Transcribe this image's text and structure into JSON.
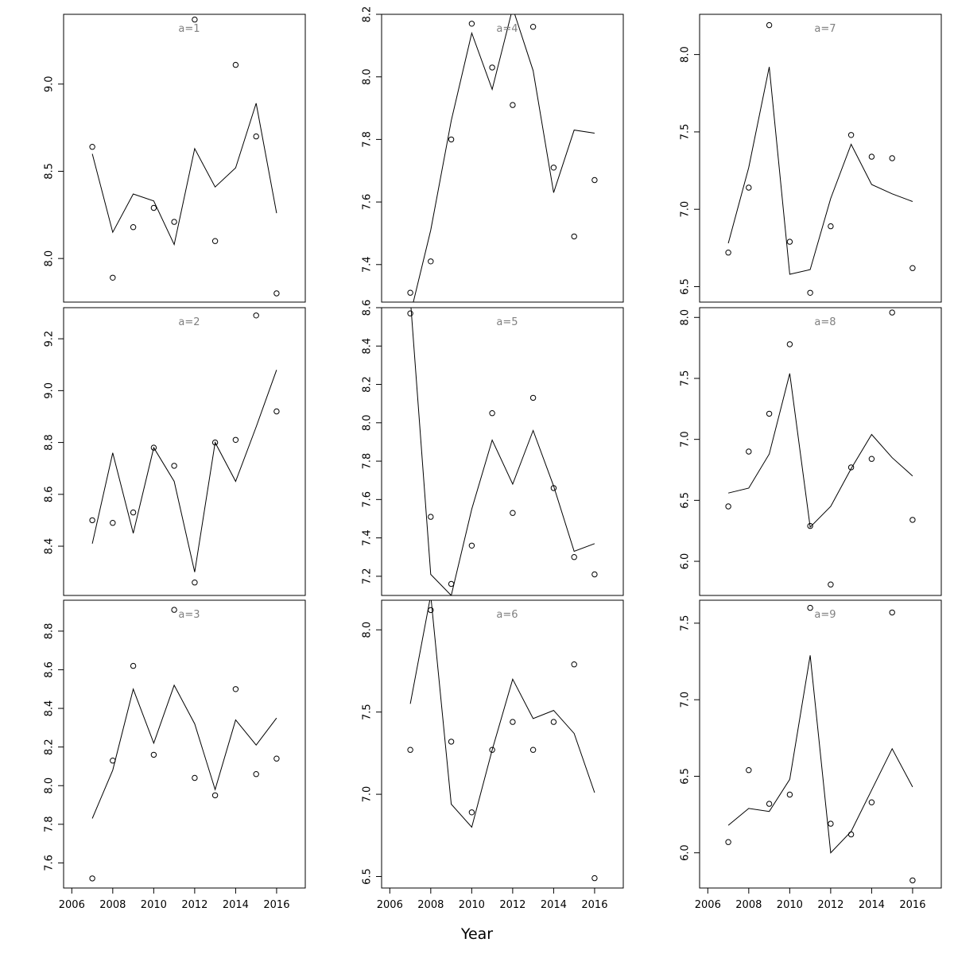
{
  "figure": {
    "xlabel": "Year"
  },
  "chart_data": [
    {
      "type": "line+scatter",
      "label": "a=1",
      "x": [
        2007,
        2008,
        2009,
        2010,
        2011,
        2012,
        2013,
        2014,
        2015,
        2016
      ],
      "points": [
        8.64,
        7.89,
        8.18,
        8.29,
        8.21,
        9.37,
        8.1,
        9.11,
        8.7,
        7.8
      ],
      "line": [
        8.6,
        8.15,
        8.37,
        8.33,
        8.08,
        8.63,
        8.41,
        8.52,
        8.89,
        8.26
      ],
      "ylim": [
        7.75,
        9.4
      ],
      "yticks": [
        8.0,
        8.5,
        9.0
      ],
      "show_xaxis": false
    },
    {
      "type": "line+scatter",
      "label": "a=2",
      "x": [
        2007,
        2008,
        2009,
        2010,
        2011,
        2012,
        2013,
        2014,
        2015,
        2016
      ],
      "points": [
        8.5,
        8.49,
        8.53,
        8.78,
        8.71,
        8.26,
        8.8,
        8.81,
        9.29,
        8.92
      ],
      "line": [
        8.41,
        8.76,
        8.45,
        8.78,
        8.65,
        8.3,
        8.8,
        8.65,
        8.86,
        9.08
      ],
      "ylim": [
        8.21,
        9.32
      ],
      "yticks": [
        8.4,
        8.6,
        8.8,
        9.0,
        9.2
      ],
      "show_xaxis": false
    },
    {
      "type": "line+scatter",
      "label": "a=3",
      "x": [
        2007,
        2008,
        2009,
        2010,
        2011,
        2012,
        2013,
        2014,
        2015,
        2016
      ],
      "points": [
        7.52,
        8.13,
        8.62,
        8.16,
        8.91,
        8.04,
        7.95,
        8.5,
        8.06,
        8.14
      ],
      "line": [
        7.83,
        8.08,
        8.5,
        8.22,
        8.52,
        8.32,
        7.98,
        8.34,
        8.21,
        8.35
      ],
      "ylim": [
        7.47,
        8.96
      ],
      "yticks": [
        7.6,
        7.8,
        8.0,
        8.2,
        8.4,
        8.6,
        8.8
      ],
      "show_xaxis": true
    },
    {
      "type": "line+scatter",
      "label": "a=4",
      "x": [
        2007,
        2008,
        2009,
        2010,
        2011,
        2012,
        2013,
        2014,
        2015,
        2016
      ],
      "points": [
        7.31,
        7.41,
        7.8,
        8.17,
        8.03,
        7.91,
        8.16,
        7.71,
        7.49,
        7.67
      ],
      "line": [
        7.24,
        7.51,
        7.86,
        8.14,
        7.96,
        8.22,
        8.02,
        7.63,
        7.83,
        7.82
      ],
      "ylim": [
        7.28,
        8.2
      ],
      "yticks": [
        7.4,
        7.6,
        7.8,
        8.0,
        8.2
      ],
      "show_xaxis": false
    },
    {
      "type": "line+scatter",
      "label": "a=5",
      "x": [
        2007,
        2008,
        2009,
        2010,
        2011,
        2012,
        2013,
        2014,
        2015,
        2016
      ],
      "points": [
        8.57,
        7.51,
        7.16,
        7.36,
        8.05,
        7.53,
        8.13,
        7.66,
        7.3,
        7.21
      ],
      "line": [
        8.65,
        7.21,
        7.1,
        7.55,
        7.91,
        7.68,
        7.96,
        7.67,
        7.33,
        7.37
      ],
      "ylim": [
        7.1,
        8.6
      ],
      "yticks": [
        7.2,
        7.4,
        7.6,
        7.8,
        8.0,
        8.2,
        8.4,
        8.6
      ],
      "show_xaxis": false
    },
    {
      "type": "line+scatter",
      "label": "a=6",
      "x": [
        2007,
        2008,
        2009,
        2010,
        2011,
        2012,
        2013,
        2014,
        2015,
        2016
      ],
      "points": [
        7.27,
        8.12,
        7.32,
        6.89,
        7.27,
        7.44,
        7.27,
        7.44,
        7.79,
        6.49
      ],
      "line": [
        7.55,
        8.21,
        6.94,
        6.8,
        7.27,
        7.7,
        7.46,
        7.51,
        7.37,
        7.01
      ],
      "ylim": [
        6.43,
        8.18
      ],
      "yticks": [
        6.5,
        7.0,
        7.5,
        8.0
      ],
      "show_xaxis": true
    },
    {
      "type": "line+scatter",
      "label": "a=7",
      "x": [
        2007,
        2008,
        2009,
        2010,
        2011,
        2012,
        2013,
        2014,
        2015,
        2016
      ],
      "points": [
        6.72,
        7.14,
        8.19,
        6.79,
        6.46,
        6.89,
        7.48,
        7.34,
        7.33,
        6.62
      ],
      "line": [
        6.78,
        7.27,
        7.92,
        6.58,
        6.61,
        7.07,
        7.42,
        7.16,
        7.1,
        7.05
      ],
      "ylim": [
        6.4,
        8.26
      ],
      "yticks": [
        6.5,
        7.0,
        7.5,
        8.0
      ],
      "show_xaxis": false
    },
    {
      "type": "line+scatter",
      "label": "a=8",
      "x": [
        2007,
        2008,
        2009,
        2010,
        2011,
        2012,
        2013,
        2014,
        2015,
        2016
      ],
      "points": [
        6.45,
        6.9,
        7.21,
        7.78,
        6.29,
        5.81,
        6.77,
        6.84,
        8.04,
        6.34
      ],
      "line": [
        6.56,
        6.6,
        6.88,
        7.54,
        6.28,
        6.45,
        6.76,
        7.04,
        6.85,
        6.7
      ],
      "ylim": [
        5.72,
        8.08
      ],
      "yticks": [
        6.0,
        6.5,
        7.0,
        7.5,
        8.0
      ],
      "show_xaxis": false
    },
    {
      "type": "line+scatter",
      "label": "a=9",
      "x": [
        2007,
        2008,
        2009,
        2010,
        2011,
        2012,
        2013,
        2014,
        2015,
        2016
      ],
      "points": [
        6.07,
        6.54,
        6.32,
        6.38,
        7.6,
        6.19,
        6.12,
        6.33,
        7.57,
        5.82
      ],
      "line": [
        6.18,
        6.29,
        6.27,
        6.48,
        7.29,
        6.0,
        6.14,
        6.41,
        6.68,
        6.43
      ],
      "ylim": [
        5.77,
        7.65
      ],
      "yticks": [
        6.0,
        6.5,
        7.0,
        7.5
      ],
      "show_xaxis": true
    }
  ]
}
